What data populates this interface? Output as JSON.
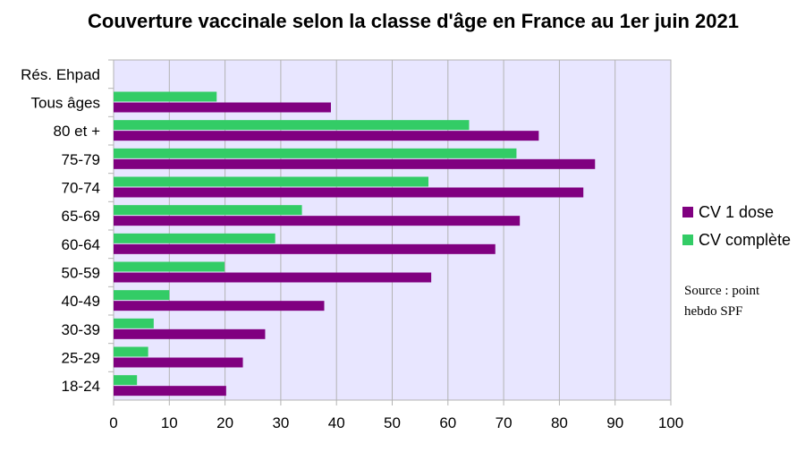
{
  "chart_data": {
    "type": "bar",
    "orientation": "horizontal",
    "title": "Couverture vaccinale selon la classe d'âge en France au 1er juin 2021",
    "categories": [
      "Rés. Ehpad",
      "Tous âges",
      "80 et +",
      "75-79",
      "70-74",
      "65-69",
      "60-64",
      "50-59",
      "40-49",
      "30-39",
      "25-29",
      "18-24"
    ],
    "series": [
      {
        "name": "CV complète",
        "color": "#33cc66",
        "values": [
          null,
          18.5,
          63.8,
          72.3,
          56.5,
          33.8,
          29.0,
          19.9,
          10.0,
          7.2,
          6.2,
          4.2
        ]
      },
      {
        "name": "CV 1 dose",
        "color": "#800080",
        "values": [
          null,
          39.0,
          76.3,
          86.4,
          84.3,
          72.9,
          68.5,
          57.0,
          37.8,
          27.2,
          23.2,
          20.2
        ]
      }
    ],
    "xlim": [
      0,
      100
    ],
    "xticks": [
      0,
      10,
      20,
      30,
      40,
      50,
      60,
      70,
      80,
      90,
      100
    ],
    "grid": true,
    "plot_background": "#e8e6ff",
    "legend_position": "right"
  },
  "annotation": {
    "line1": "Source : point",
    "line2": "hebdo SPF"
  }
}
